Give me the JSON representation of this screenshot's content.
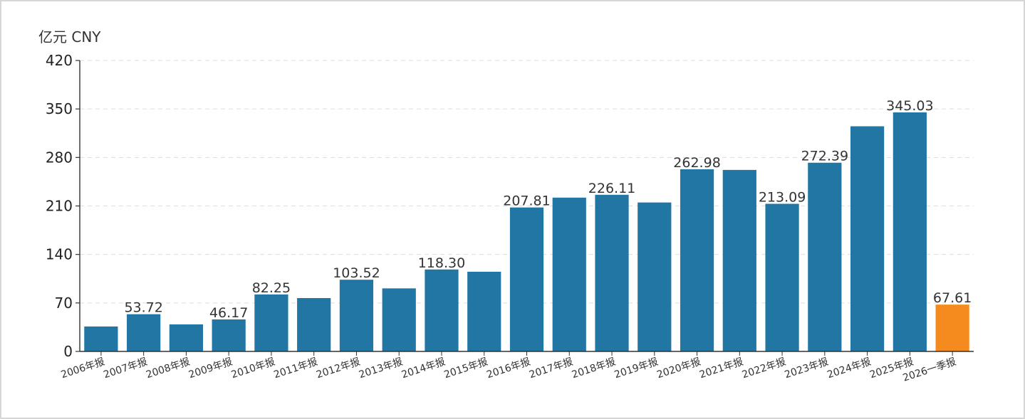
{
  "chart_data": {
    "type": "bar",
    "unit_label": "亿元  CNY",
    "categories": [
      "2006年报",
      "2007年报",
      "2008年报",
      "2009年报",
      "2010年报",
      "2011年报",
      "2012年报",
      "2013年报",
      "2014年报",
      "2015年报",
      "2016年报",
      "2017年报",
      "2018年报",
      "2019年报",
      "2020年报",
      "2021年报",
      "2022年报",
      "2023年报",
      "2024年报",
      "2025年报",
      "2026一季报"
    ],
    "values": [
      36,
      53.72,
      39,
      46.17,
      82.25,
      77,
      103.52,
      91,
      118.3,
      115,
      207.81,
      222,
      226.11,
      215,
      262.98,
      262,
      213.09,
      272.39,
      325,
      345.03,
      67.61
    ],
    "data_labels": [
      "",
      "53.72",
      "",
      "46.17",
      "82.25",
      "",
      "103.52",
      "",
      "118.30",
      "",
      "207.81",
      "",
      "226.11",
      "",
      "262.98",
      "",
      "213.09",
      "272.39",
      "",
      "345.03",
      "67.61"
    ],
    "yticks": [
      0,
      70,
      140,
      210,
      280,
      350,
      420
    ],
    "ytick_labels": [
      "0",
      "70",
      "140",
      "210",
      "280",
      "350",
      "420"
    ],
    "ylim": [
      0,
      420
    ],
    "grid": true,
    "colors": {
      "default": "#2276a4",
      "highlight": "#f58a1f",
      "grid": "#dddddd",
      "axis": "#333333"
    },
    "highlight_index": 20
  }
}
